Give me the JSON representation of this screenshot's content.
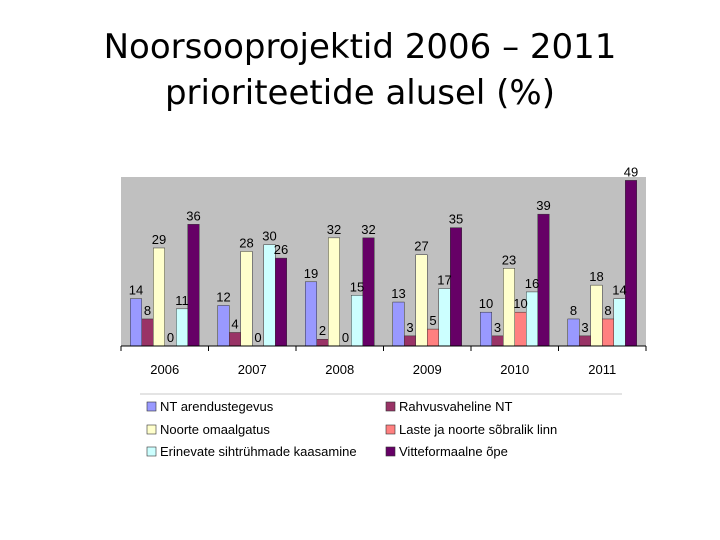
{
  "title_line1": "Noorsooprojektid 2006 – 2011",
  "title_line2": "prioriteetide alusel (%)",
  "chart_data": {
    "type": "bar",
    "categories": [
      "2006",
      "2007",
      "2008",
      "2009",
      "2010",
      "2011"
    ],
    "ylim": [
      0,
      50
    ],
    "grid": false,
    "legend_position": "bottom",
    "series": [
      {
        "name": "NT arendustegevus",
        "color": "#9999ff",
        "values": [
          14,
          12,
          19,
          13,
          10,
          8
        ]
      },
      {
        "name": "Rahvusvaheline NT",
        "color": "#993366",
        "values": [
          8,
          4,
          2,
          3,
          3,
          3
        ]
      },
      {
        "name": "Noorte omaalgatus",
        "color": "#ffffcc",
        "values": [
          29,
          28,
          32,
          27,
          23,
          18
        ]
      },
      {
        "name": "Laste ja noorte sõbralik linn",
        "color": "#ff8080",
        "values": [
          0,
          0,
          0,
          5,
          10,
          8
        ]
      },
      {
        "name": "Erinevate sihtrühmade kaasamine",
        "color": "#ccffff",
        "values": [
          11,
          30,
          15,
          17,
          16,
          14
        ]
      },
      {
        "name": "Vitteformaalne õpe",
        "color": "#660066",
        "values": [
          36,
          26,
          32,
          35,
          39,
          49
        ]
      }
    ],
    "value_labels": [
      [
        "14",
        "8",
        "29",
        "0",
        "11",
        "36"
      ],
      [
        "12",
        "4",
        "28",
        "0",
        "30",
        "26"
      ],
      [
        "19",
        "2",
        "32",
        "0",
        "15",
        "32"
      ],
      [
        "13",
        "3",
        "27",
        "5",
        "17",
        "35"
      ],
      [
        "10",
        "3",
        "23",
        "10",
        "16",
        "39"
      ],
      [
        "8",
        "3",
        "18",
        "8",
        "14",
        "49"
      ]
    ]
  }
}
